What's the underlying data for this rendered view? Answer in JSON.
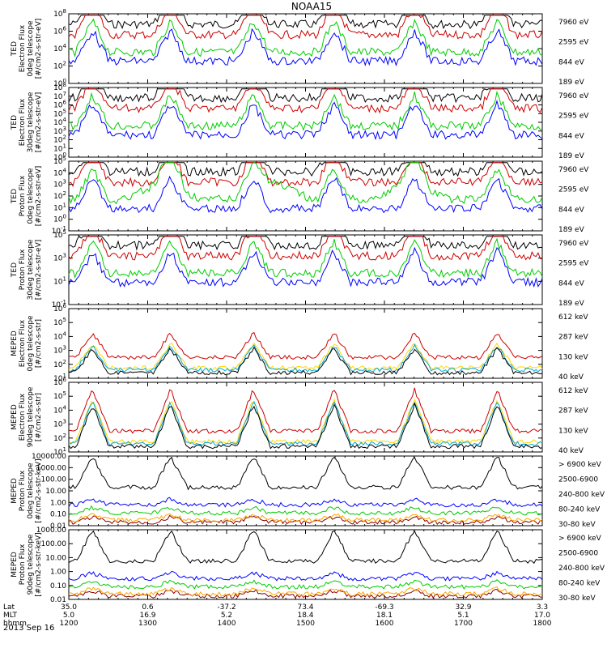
{
  "title": "NOAA15",
  "date_label": "2013 Sep 16",
  "chart_data": [
    {
      "type": "line",
      "ylabel": [
        "TED",
        "Electron Flux",
        "0deg telescope",
        "[#/cm2-s-str-eV]"
      ],
      "yticks": [
        "10^0",
        "10^2",
        "10^4",
        "10^6",
        "10^8"
      ],
      "legend": [
        {
          "label": "7960 eV",
          "color": "#000000"
        },
        {
          "label": "2595 eV",
          "color": "#cc0000"
        },
        {
          "label": "844 eV",
          "color": "#00cc00"
        },
        {
          "label": "189 eV",
          "color": "#0000ff"
        }
      ]
    },
    {
      "type": "line",
      "ylabel": [
        "TED",
        "Electron Flux",
        "30deg telescope",
        "[#/cm2-s-str-eV]"
      ],
      "yticks": [
        "10^0",
        "10^1",
        "10^2",
        "10^3",
        "10^4",
        "10^5",
        "10^6",
        "10^7",
        "10^8"
      ],
      "legend": [
        {
          "label": "7960 eV",
          "color": "#000000"
        },
        {
          "label": "2595 eV",
          "color": "#cc0000"
        },
        {
          "label": "844 eV",
          "color": "#00cc00"
        },
        {
          "label": "189 eV",
          "color": "#0000ff"
        }
      ]
    },
    {
      "type": "line",
      "ylabel": [
        "TED",
        "Proton Flux",
        "0deg telescope",
        "[#/cm2-s-str-eV]"
      ],
      "yticks": [
        "10^-1",
        "10^0",
        "10^1",
        "10^2",
        "10^3",
        "10^4",
        "10^5"
      ],
      "legend": [
        {
          "label": "7960 eV",
          "color": "#000000"
        },
        {
          "label": "2595 eV",
          "color": "#cc0000"
        },
        {
          "label": "844 eV",
          "color": "#00cc00"
        },
        {
          "label": "189 eV",
          "color": "#0000ff"
        }
      ]
    },
    {
      "type": "line",
      "ylabel": [
        "TED",
        "Proton Flux",
        "30deg telescope",
        "[#/cm2-s-str-eV]"
      ],
      "yticks": [
        "10^-1",
        "10^1",
        "10^3",
        "10^5"
      ],
      "legend": [
        {
          "label": "7960 eV",
          "color": "#000000"
        },
        {
          "label": "2595 eV",
          "color": "#cc0000"
        },
        {
          "label": "844 eV",
          "color": "#00cc00"
        },
        {
          "label": "189 eV",
          "color": "#0000ff"
        }
      ]
    },
    {
      "type": "line",
      "ylabel": [
        "MEPED",
        "Electron Flux",
        "0deg telescope",
        "[#/cm2-s-str]"
      ],
      "yticks": [
        "10^1",
        "10^2",
        "10^3",
        "10^4",
        "10^5",
        "10^6"
      ],
      "legend": [
        {
          "label": "612 keV",
          "color": "#cc0000"
        },
        {
          "label": "287 keV",
          "color": "#ffd700"
        },
        {
          "label": "130 keV",
          "color": "#00aadd"
        },
        {
          "label": "40 keV",
          "color": "#000000"
        }
      ]
    },
    {
      "type": "line",
      "ylabel": [
        "MEPED",
        "Electron Flux",
        "90deg telescope",
        "[#/cm2-s-str]"
      ],
      "yticks": [
        "10^1",
        "10^2",
        "10^3",
        "10^4",
        "10^5",
        "10^6"
      ],
      "legend": [
        {
          "label": "612 keV",
          "color": "#cc0000"
        },
        {
          "label": "287 keV",
          "color": "#ffd700"
        },
        {
          "label": "130 keV",
          "color": "#00aadd"
        },
        {
          "label": "40 keV",
          "color": "#000000"
        }
      ]
    },
    {
      "type": "line",
      "ylabel": [
        "MEPED",
        "Proton Flux",
        "0deg telescope",
        "[#/cm2-s-str-keV]"
      ],
      "yticks": [
        "0.01",
        "0.10",
        "1.00",
        "10.00",
        "100.00",
        "1000.00",
        "10000.00"
      ],
      "legend": [
        {
          "label": "> 6900 keV",
          "color": "#8b0000"
        },
        {
          "label": "2500-6900",
          "color": "#ffa500"
        },
        {
          "label": "240-800 keV",
          "color": "#00cc00"
        },
        {
          "label": "80-240 keV",
          "color": "#0000ff"
        },
        {
          "label": "30-80 keV",
          "color": "#000000"
        }
      ]
    },
    {
      "type": "line",
      "ylabel": [
        "MEPED",
        "Proton Flux",
        "90deg telescope",
        "[#/cm2-s-str-keV]"
      ],
      "yticks": [
        "0.01",
        "0.10",
        "1.00",
        "10.00",
        "100.00",
        "1000.00"
      ],
      "legend": [
        {
          "label": "> 6900 keV",
          "color": "#8b0000"
        },
        {
          "label": "2500-6900",
          "color": "#ffa500"
        },
        {
          "label": "240-800 keV",
          "color": "#00cc00"
        },
        {
          "label": "80-240 keV",
          "color": "#0000ff"
        },
        {
          "label": "30-80 keV",
          "color": "#000000"
        }
      ]
    }
  ],
  "xaxis": {
    "row_labels": [
      "Lat",
      "MLT",
      "hhmm"
    ],
    "lat": [
      "35.0",
      "0.6",
      "-37.2",
      "73.4",
      "-69.3",
      "32.9",
      "3.3"
    ],
    "mlt": [
      "5.0",
      "16.9",
      "5.2",
      "18.4",
      "18.1",
      "5.1",
      "17.0"
    ],
    "hhmm": [
      "1200",
      "1300",
      "1400",
      "1500",
      "1600",
      "1700",
      "1800"
    ]
  }
}
